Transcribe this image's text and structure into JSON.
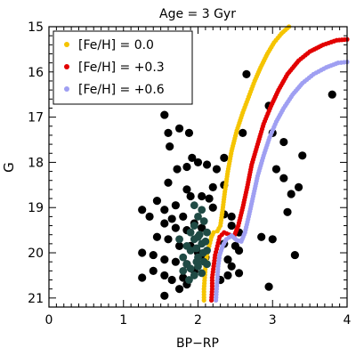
{
  "chart_data": {
    "type": "scatter",
    "title": "Age = 3 Gyr",
    "xlabel": "BP−RP",
    "ylabel": "G",
    "xlim": [
      0,
      4
    ],
    "ylim": [
      21.2,
      15
    ],
    "y_inverted": true,
    "grid": false,
    "legend_position": "top-left",
    "x_ticks": [
      "0",
      "1",
      "2",
      "3",
      "4"
    ],
    "y_ticks": [
      "15",
      "16",
      "17",
      "18",
      "19",
      "20",
      "21"
    ],
    "series": [
      {
        "name": "[Fe/H] = 0.0",
        "color": "#f5c400",
        "kind": "isochrone",
        "points": [
          [
            2.08,
            21.05
          ],
          [
            2.08,
            20.8
          ],
          [
            2.09,
            20.55
          ],
          [
            2.1,
            20.3
          ],
          [
            2.12,
            20.05
          ],
          [
            2.15,
            19.85
          ],
          [
            2.18,
            19.65
          ],
          [
            2.21,
            19.55
          ],
          [
            2.26,
            19.52
          ],
          [
            2.3,
            19.4
          ],
          [
            2.33,
            19.05
          ],
          [
            2.36,
            18.65
          ],
          [
            2.4,
            18.2
          ],
          [
            2.45,
            17.75
          ],
          [
            2.52,
            17.3
          ],
          [
            2.6,
            16.9
          ],
          [
            2.68,
            16.55
          ],
          [
            2.76,
            16.2
          ],
          [
            2.84,
            15.9
          ],
          [
            2.93,
            15.6
          ],
          [
            3.02,
            15.35
          ],
          [
            3.12,
            15.15
          ],
          [
            3.22,
            15.0
          ]
        ]
      },
      {
        "name": "[Fe/H] = +0.3",
        "color": "#e20000",
        "kind": "isochrone",
        "points": [
          [
            2.18,
            21.05
          ],
          [
            2.19,
            20.8
          ],
          [
            2.19,
            20.55
          ],
          [
            2.21,
            20.3
          ],
          [
            2.23,
            20.05
          ],
          [
            2.26,
            19.85
          ],
          [
            2.29,
            19.65
          ],
          [
            2.35,
            19.55
          ],
          [
            2.42,
            19.6
          ],
          [
            2.48,
            19.65
          ],
          [
            2.54,
            19.4
          ],
          [
            2.6,
            19.0
          ],
          [
            2.66,
            18.55
          ],
          [
            2.72,
            18.05
          ],
          [
            2.8,
            17.6
          ],
          [
            2.88,
            17.15
          ],
          [
            2.98,
            16.75
          ],
          [
            3.08,
            16.4
          ],
          [
            3.2,
            16.05
          ],
          [
            3.35,
            15.75
          ],
          [
            3.5,
            15.55
          ],
          [
            3.68,
            15.4
          ],
          [
            3.86,
            15.3
          ],
          [
            4.0,
            15.28
          ]
        ]
      },
      {
        "name": "[Fe/H] = +0.6",
        "color": "#9f9ff2",
        "kind": "isochrone",
        "points": [
          [
            2.24,
            21.05
          ],
          [
            2.25,
            20.8
          ],
          [
            2.26,
            20.55
          ],
          [
            2.27,
            20.3
          ],
          [
            2.29,
            20.05
          ],
          [
            2.33,
            19.85
          ],
          [
            2.38,
            19.7
          ],
          [
            2.45,
            19.62
          ],
          [
            2.52,
            19.72
          ],
          [
            2.58,
            19.75
          ],
          [
            2.63,
            19.55
          ],
          [
            2.68,
            19.2
          ],
          [
            2.74,
            18.75
          ],
          [
            2.8,
            18.3
          ],
          [
            2.88,
            17.85
          ],
          [
            2.96,
            17.45
          ],
          [
            3.05,
            17.1
          ],
          [
            3.15,
            16.8
          ],
          [
            3.27,
            16.5
          ],
          [
            3.4,
            16.25
          ],
          [
            3.55,
            16.05
          ],
          [
            3.72,
            15.9
          ],
          [
            3.88,
            15.8
          ],
          [
            4.0,
            15.78
          ]
        ]
      },
      {
        "name": "",
        "color": "#000000",
        "kind": "stars",
        "points": [
          [
            1.55,
            16.95
          ],
          [
            1.6,
            17.35
          ],
          [
            1.62,
            17.65
          ],
          [
            1.75,
            17.25
          ],
          [
            1.88,
            17.35
          ],
          [
            1.6,
            18.45
          ],
          [
            1.72,
            18.15
          ],
          [
            1.85,
            18.1
          ],
          [
            1.92,
            17.9
          ],
          [
            2.0,
            18.0
          ],
          [
            2.12,
            18.05
          ],
          [
            2.25,
            18.15
          ],
          [
            2.35,
            17.9
          ],
          [
            2.6,
            17.35
          ],
          [
            2.65,
            16.05
          ],
          [
            2.95,
            16.75
          ],
          [
            2.2,
            18.55
          ],
          [
            1.7,
            18.95
          ],
          [
            1.9,
            18.75
          ],
          [
            2.05,
            18.75
          ],
          [
            2.15,
            18.8
          ],
          [
            2.35,
            18.5
          ],
          [
            1.45,
            18.85
          ],
          [
            1.55,
            19.05
          ],
          [
            1.65,
            19.25
          ],
          [
            1.8,
            19.2
          ],
          [
            1.85,
            18.6
          ],
          [
            2.2,
            19.0
          ],
          [
            2.35,
            19.15
          ],
          [
            2.45,
            19.2
          ],
          [
            1.25,
            19.05
          ],
          [
            1.35,
            19.2
          ],
          [
            1.55,
            19.35
          ],
          [
            1.7,
            19.45
          ],
          [
            1.85,
            19.5
          ],
          [
            2.45,
            19.4
          ],
          [
            2.55,
            19.55
          ],
          [
            1.45,
            19.65
          ],
          [
            1.6,
            19.7
          ],
          [
            1.75,
            19.85
          ],
          [
            1.9,
            19.85
          ],
          [
            2.35,
            19.8
          ],
          [
            2.5,
            19.85
          ],
          [
            2.55,
            19.95
          ],
          [
            1.25,
            20.0
          ],
          [
            1.4,
            20.05
          ],
          [
            1.55,
            20.15
          ],
          [
            1.7,
            20.2
          ],
          [
            1.85,
            20.25
          ],
          [
            2.4,
            20.15
          ],
          [
            2.45,
            20.3
          ],
          [
            1.4,
            20.4
          ],
          [
            1.55,
            20.5
          ],
          [
            1.65,
            20.6
          ],
          [
            1.8,
            20.55
          ],
          [
            2.4,
            20.5
          ],
          [
            2.55,
            20.45
          ],
          [
            1.85,
            20.7
          ],
          [
            1.55,
            20.95
          ],
          [
            1.75,
            20.8
          ],
          [
            2.3,
            20.6
          ],
          [
            1.25,
            20.55
          ],
          [
            2.95,
            20.75
          ],
          [
            2.85,
            19.65
          ],
          [
            3.0,
            19.7
          ],
          [
            3.2,
            19.1
          ],
          [
            3.3,
            20.05
          ],
          [
            3.15,
            18.35
          ],
          [
            3.05,
            18.15
          ],
          [
            3.25,
            18.7
          ],
          [
            3.35,
            18.55
          ],
          [
            3.8,
            16.5
          ],
          [
            3.0,
            17.35
          ],
          [
            3.15,
            17.55
          ],
          [
            3.4,
            17.85
          ],
          [
            1.95,
            19.35
          ],
          [
            2.05,
            19.45
          ],
          [
            2.0,
            20.0
          ],
          [
            2.1,
            20.1
          ],
          [
            1.95,
            20.4
          ]
        ]
      },
      {
        "name": "",
        "color": "#1f4a44",
        "kind": "members",
        "points": [
          [
            1.85,
            19.85
          ],
          [
            1.9,
            19.95
          ],
          [
            1.95,
            19.7
          ],
          [
            1.98,
            19.9
          ],
          [
            2.0,
            20.1
          ],
          [
            2.02,
            19.6
          ],
          [
            2.05,
            19.8
          ],
          [
            2.07,
            20.0
          ],
          [
            2.1,
            19.75
          ],
          [
            2.12,
            19.95
          ],
          [
            1.8,
            20.1
          ],
          [
            1.85,
            20.25
          ],
          [
            1.9,
            20.35
          ],
          [
            1.95,
            20.5
          ],
          [
            2.0,
            20.3
          ],
          [
            2.05,
            20.45
          ],
          [
            2.08,
            20.2
          ],
          [
            1.8,
            20.4
          ],
          [
            1.88,
            20.6
          ],
          [
            1.95,
            19.4
          ],
          [
            2.0,
            19.2
          ],
          [
            2.05,
            19.05
          ],
          [
            1.95,
            18.95
          ],
          [
            2.08,
            19.3
          ],
          [
            1.9,
            19.55
          ],
          [
            2.12,
            19.55
          ],
          [
            2.0,
            19.65
          ],
          [
            2.12,
            20.25
          ],
          [
            1.75,
            19.7
          ],
          [
            1.98,
            20.2
          ]
        ]
      }
    ]
  }
}
